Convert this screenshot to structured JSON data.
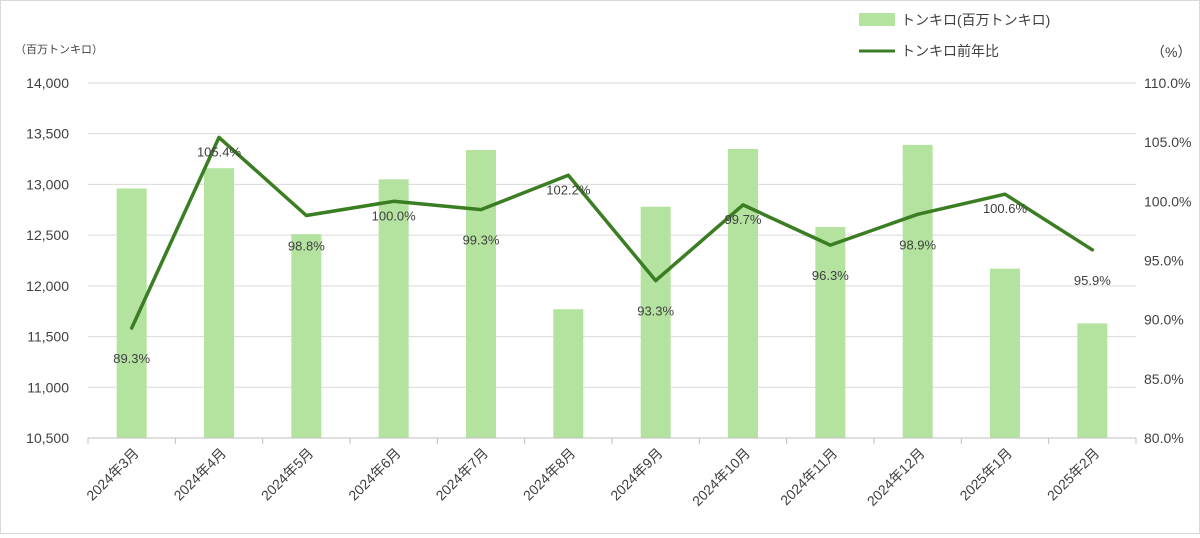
{
  "chart_data": {
    "type": "bar+line",
    "categories": [
      "2024年3月",
      "2024年4月",
      "2024年5月",
      "2024年6月",
      "2024年7月",
      "2024年8月",
      "2024年9月",
      "2024年10月",
      "2024年11月",
      "2024年12月",
      "2025年1月",
      "2025年2月"
    ],
    "left_axis": {
      "unit_label": "（百万トンキロ）",
      "min": 10500,
      "max": 14000,
      "step": 500,
      "tick_labels": [
        "10,500",
        "11,000",
        "11,500",
        "12,000",
        "12,500",
        "13,000",
        "13,500",
        "14,000"
      ]
    },
    "right_axis": {
      "unit_label": "（%）",
      "min": 80,
      "max": 110,
      "step": 5,
      "tick_labels": [
        "80.0%",
        "85.0%",
        "90.0%",
        "95.0%",
        "100.0%",
        "105.0%",
        "110.0%"
      ]
    },
    "series": [
      {
        "name": "トンキロ(百万トンキロ)",
        "type": "bar",
        "axis": "left",
        "color": "#b4e3a0",
        "values": [
          12960,
          13160,
          12510,
          13050,
          13340,
          11770,
          12780,
          13350,
          12580,
          13390,
          12170,
          11630
        ]
      },
      {
        "name": "トンキロ前年比",
        "type": "line",
        "axis": "right",
        "color": "#3a7d22",
        "values": [
          89.3,
          105.4,
          98.8,
          100.0,
          99.3,
          102.2,
          93.3,
          99.7,
          96.3,
          98.9,
          100.6,
          95.9
        ],
        "labels": [
          "89.3%",
          "105.4%",
          "98.8%",
          "100.0%",
          "99.3%",
          "102.2%",
          "93.3%",
          "99.7%",
          "96.3%",
          "98.9%",
          "100.6%",
          "95.9%"
        ]
      }
    ],
    "grid": true,
    "legend_position": "top-right"
  }
}
